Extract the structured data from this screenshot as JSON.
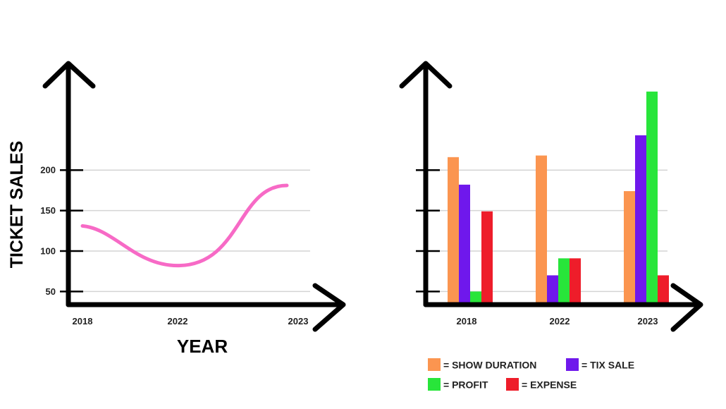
{
  "chart_data": [
    {
      "type": "line",
      "title": "",
      "xlabel": "YEAR",
      "ylabel": "TICKET SALES",
      "x": [
        "2018",
        "2022",
        "2023"
      ],
      "y_ticks": [
        50,
        100,
        150,
        200
      ],
      "ylim": [
        25,
        250
      ],
      "grid": true,
      "series": [
        {
          "color": "#f76ac6",
          "points": [
            [
              2018,
              131
            ],
            [
              2022,
              82
            ],
            [
              2023,
              181
            ]
          ]
        }
      ]
    },
    {
      "type": "bar",
      "title": "",
      "categories": [
        "2018",
        "2022",
        "2023"
      ],
      "y_ticks_labeled": false,
      "grid": true,
      "legend_position": "bottom",
      "series": [
        {
          "name": "= SHOW DURATION",
          "color": "#fb9550",
          "values": [
            216,
            218,
            174
          ]
        },
        {
          "name": "= TIX SALE",
          "color": "#6f18ec",
          "values": [
            182,
            70,
            243
          ]
        },
        {
          "name": "= PROFIT",
          "color": "#28e53a",
          "values": [
            50,
            91,
            297
          ]
        },
        {
          "name": "= EXPENSE",
          "color": "#ee1d2a",
          "values": [
            149,
            91,
            70
          ]
        }
      ]
    }
  ]
}
